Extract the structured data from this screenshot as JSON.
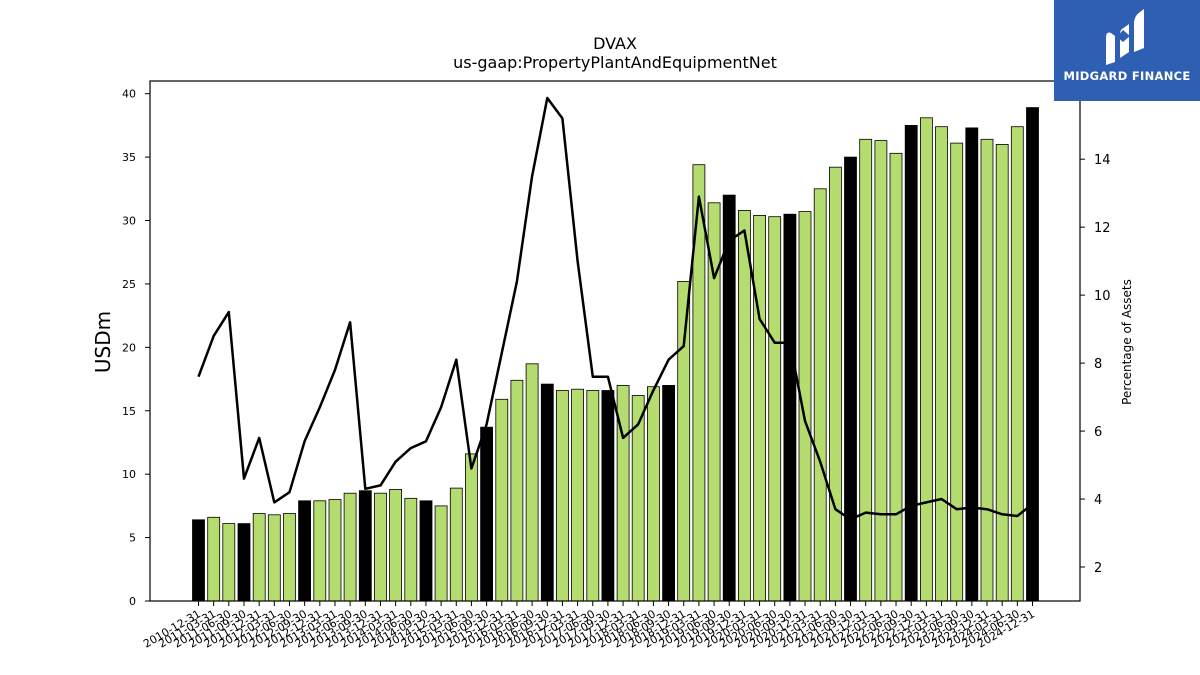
{
  "logo": {
    "text": "MIDGARD FINANCE",
    "background": "#2f5fb3"
  },
  "chart_data": {
    "type": "bar",
    "title": "DVAX",
    "subtitle": "us-gaap:PropertyPlantAndEquipmentNet",
    "ylabel": "USDm",
    "y2label": "Percentage of Assets",
    "ylim": [
      0,
      41
    ],
    "y2lim": [
      1.0,
      16.3
    ],
    "yticks": [
      0,
      5,
      10,
      15,
      20,
      25,
      30,
      35,
      40
    ],
    "y2ticks": [
      2,
      4,
      6,
      8,
      10,
      12,
      14
    ],
    "grid": false,
    "colors": {
      "annual_bar": "#000000",
      "quarter_bar": "#b5dc6e",
      "line": "#000000"
    },
    "categories": [
      "2010-12-31",
      "2011-03-31",
      "2011-06-30",
      "2011-09-30",
      "2011-12-31",
      "2012-03-31",
      "2012-06-30",
      "2012-09-30",
      "2012-12-31",
      "2013-03-31",
      "2013-06-30",
      "2013-09-30",
      "2013-12-31",
      "2014-03-31",
      "2014-06-30",
      "2014-09-30",
      "2014-12-31",
      "2015-03-31",
      "2015-06-30",
      "2015-09-30",
      "2015-12-31",
      "2016-03-31",
      "2016-06-30",
      "2016-09-30",
      "2016-12-31",
      "2017-03-31",
      "2017-06-30",
      "2017-09-30",
      "2017-12-31",
      "2018-03-31",
      "2018-06-30",
      "2018-09-30",
      "2018-12-31",
      "2019-03-31",
      "2019-06-30",
      "2019-09-30",
      "2019-12-31",
      "2020-03-31",
      "2020-06-30",
      "2020-09-30",
      "2020-12-31",
      "2021-03-31",
      "2021-06-30",
      "2021-09-30",
      "2021-12-31",
      "2022-03-31",
      "2022-06-30",
      "2022-09-30",
      "2022-12-31",
      "2023-03-31",
      "2023-06-30",
      "2023-09-30",
      "2023-12-31",
      "2024-03-31",
      "2024-06-30",
      "2024-12-31"
    ],
    "series": [
      {
        "kind": "bar",
        "values": [
          6.4,
          6.6,
          6.1,
          6.1,
          6.9,
          6.8,
          6.9,
          7.9,
          7.9,
          8.0,
          8.5,
          8.7,
          8.5,
          8.8,
          8.1,
          7.9,
          7.5,
          8.9,
          11.6,
          13.7,
          15.9,
          17.4,
          18.7,
          17.1,
          16.6,
          16.7,
          16.6,
          16.6,
          17.0,
          16.2,
          16.9,
          17.0,
          25.2,
          34.4,
          31.4,
          32.0,
          30.8,
          30.4,
          30.3,
          30.5,
          30.7,
          32.5,
          34.2,
          35.0,
          36.4,
          36.3,
          35.3,
          37.5,
          38.1,
          37.4,
          36.1,
          37.3,
          36.4,
          36.0,
          37.4,
          38.9
        ],
        "annual": [
          true,
          false,
          false,
          true,
          false,
          false,
          false,
          true,
          false,
          false,
          false,
          true,
          false,
          false,
          false,
          true,
          false,
          false,
          false,
          true,
          false,
          false,
          false,
          true,
          false,
          false,
          false,
          true,
          false,
          false,
          false,
          true,
          false,
          false,
          false,
          true,
          false,
          false,
          false,
          true,
          false,
          false,
          false,
          true,
          false,
          false,
          false,
          true,
          false,
          false,
          false,
          true,
          false,
          false,
          false,
          true
        ]
      },
      {
        "kind": "line",
        "axis": "right",
        "values": [
          7.6,
          8.8,
          9.5,
          4.6,
          5.8,
          3.9,
          4.2,
          5.7,
          6.7,
          7.8,
          9.2,
          4.3,
          4.4,
          5.1,
          5.5,
          5.7,
          6.7,
          8.1,
          4.9,
          6.2,
          8.3,
          10.4,
          13.5,
          15.8,
          15.2,
          11.0,
          7.6,
          7.6,
          5.8,
          6.2,
          7.2,
          8.1,
          8.5,
          12.9,
          10.5,
          11.6,
          11.9,
          9.3,
          8.6,
          8.6,
          6.3,
          5.1,
          3.7,
          3.4,
          3.6,
          3.55,
          3.55,
          3.8,
          3.9,
          4.0,
          3.7,
          3.75,
          3.7,
          3.55,
          3.5,
          3.85
        ]
      }
    ]
  }
}
